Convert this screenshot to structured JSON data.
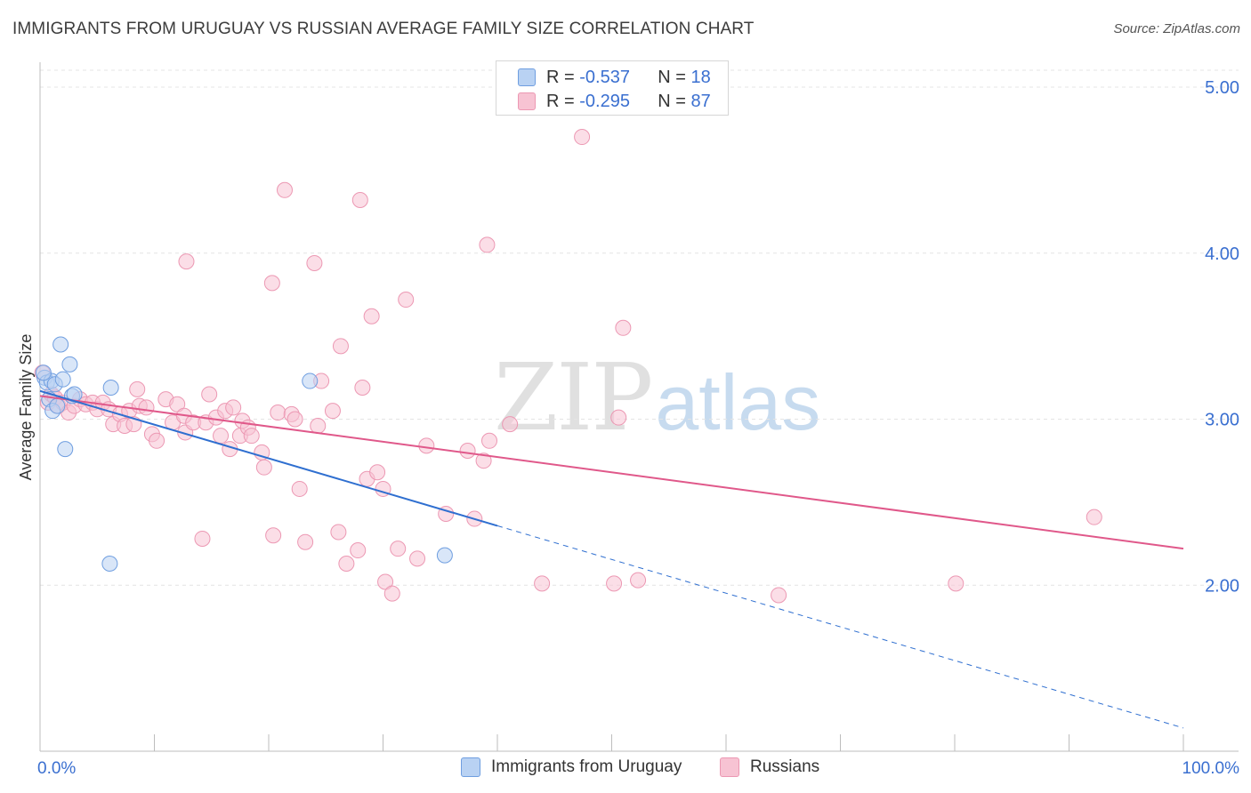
{
  "header": {
    "title": "IMMIGRANTS FROM URUGUAY VS RUSSIAN AVERAGE FAMILY SIZE CORRELATION CHART",
    "source": "Source: ZipAtlas.com"
  },
  "watermark": {
    "zip": "ZIP",
    "atlas": "atlas"
  },
  "colors": {
    "blue_fill": "#b9d2f3",
    "blue_stroke": "#6f9ee0",
    "blue_line": "#2f6fd0",
    "pink_fill": "#f7c3d3",
    "pink_stroke": "#ec98b3",
    "pink_line": "#e0588a",
    "axis_label": "#3a6fd0",
    "grid": "#e4e4e4"
  },
  "stats": [
    {
      "r_label": "R = ",
      "r_value": "-0.537",
      "n_label": "N = ",
      "n_value": "18"
    },
    {
      "r_label": "R = ",
      "r_value": "-0.295",
      "n_label": "N = ",
      "n_value": "87"
    }
  ],
  "legend": [
    {
      "label": "Immigrants from Uruguay"
    },
    {
      "label": "Russians"
    }
  ],
  "chart_data": {
    "type": "scatter",
    "title": "IMMIGRANTS FROM URUGUAY VS RUSSIAN AVERAGE FAMILY SIZE CORRELATION CHART",
    "xlabel": "",
    "ylabel": "Average Family Size",
    "xlim": [
      0,
      100
    ],
    "ylim": [
      1.0,
      5.15
    ],
    "x_tick_labels": [
      "0.0%",
      "100.0%"
    ],
    "y_ticks": [
      2.0,
      3.0,
      4.0,
      5.0
    ],
    "y_tick_labels": [
      "2.00",
      "3.00",
      "4.00",
      "5.00"
    ],
    "grid": true,
    "legend_position": "bottom",
    "series": [
      {
        "name": "Immigrants from Uruguay",
        "r": -0.537,
        "n": 18,
        "trend": {
          "x0": 0,
          "y0": 3.17,
          "x1": 100,
          "y1": 1.14,
          "solid_until_x": 40.0
        },
        "points": [
          [
            0.4,
            3.25
          ],
          [
            0.6,
            3.22
          ],
          [
            0.8,
            3.12
          ],
          [
            1.0,
            3.23
          ],
          [
            1.1,
            3.05
          ],
          [
            1.3,
            3.21
          ],
          [
            1.5,
            3.08
          ],
          [
            1.8,
            3.45
          ],
          [
            2.0,
            3.24
          ],
          [
            2.2,
            2.82
          ],
          [
            2.6,
            3.33
          ],
          [
            2.8,
            3.14
          ],
          [
            3.0,
            3.15
          ],
          [
            6.2,
            3.19
          ],
          [
            6.1,
            2.13
          ],
          [
            23.6,
            3.23
          ],
          [
            35.4,
            2.18
          ],
          [
            0.3,
            3.28
          ]
        ]
      },
      {
        "name": "Russians",
        "r": -0.295,
        "n": 87,
        "trend": {
          "x0": 0,
          "y0": 3.14,
          "x1": 100,
          "y1": 2.22,
          "solid_until_x": 100
        },
        "points": [
          [
            0.2,
            3.28
          ],
          [
            0.7,
            3.1
          ],
          [
            1.0,
            3.15
          ],
          [
            1.3,
            3.13
          ],
          [
            1.6,
            3.08
          ],
          [
            2.0,
            3.1
          ],
          [
            2.5,
            3.04
          ],
          [
            3.0,
            3.08
          ],
          [
            3.5,
            3.12
          ],
          [
            4.0,
            3.09
          ],
          [
            4.6,
            3.1
          ],
          [
            5.0,
            3.06
          ],
          [
            5.5,
            3.1
          ],
          [
            6.0,
            3.06
          ],
          [
            6.4,
            2.97
          ],
          [
            7.0,
            3.03
          ],
          [
            7.4,
            2.96
          ],
          [
            7.8,
            3.05
          ],
          [
            8.2,
            2.97
          ],
          [
            8.7,
            3.08
          ],
          [
            8.5,
            3.18
          ],
          [
            9.3,
            3.07
          ],
          [
            9.8,
            2.91
          ],
          [
            10.2,
            2.87
          ],
          [
            11.0,
            3.12
          ],
          [
            11.6,
            2.98
          ],
          [
            12.0,
            3.09
          ],
          [
            12.6,
            3.02
          ],
          [
            12.7,
            2.92
          ],
          [
            12.8,
            3.95
          ],
          [
            13.4,
            2.98
          ],
          [
            14.2,
            2.28
          ],
          [
            14.5,
            2.98
          ],
          [
            14.8,
            3.15
          ],
          [
            15.4,
            3.01
          ],
          [
            15.8,
            2.9
          ],
          [
            16.2,
            3.05
          ],
          [
            16.6,
            2.82
          ],
          [
            16.9,
            3.07
          ],
          [
            17.5,
            2.9
          ],
          [
            17.7,
            2.99
          ],
          [
            18.2,
            2.95
          ],
          [
            18.5,
            2.9
          ],
          [
            19.4,
            2.8
          ],
          [
            19.6,
            2.71
          ],
          [
            20.3,
            3.82
          ],
          [
            20.4,
            2.3
          ],
          [
            20.8,
            3.04
          ],
          [
            21.4,
            4.38
          ],
          [
            22.0,
            3.03
          ],
          [
            22.3,
            3.0
          ],
          [
            22.7,
            2.58
          ],
          [
            23.2,
            2.26
          ],
          [
            24.0,
            3.94
          ],
          [
            24.3,
            2.96
          ],
          [
            24.6,
            3.23
          ],
          [
            25.6,
            3.05
          ],
          [
            26.1,
            2.32
          ],
          [
            26.3,
            3.44
          ],
          [
            26.8,
            2.13
          ],
          [
            27.8,
            2.21
          ],
          [
            28.2,
            3.19
          ],
          [
            28.6,
            2.64
          ],
          [
            29.0,
            3.62
          ],
          [
            29.5,
            2.68
          ],
          [
            30.0,
            2.58
          ],
          [
            30.2,
            2.02
          ],
          [
            30.8,
            1.95
          ],
          [
            31.3,
            2.22
          ],
          [
            32.0,
            3.72
          ],
          [
            33.0,
            2.16
          ],
          [
            33.8,
            2.84
          ],
          [
            35.5,
            2.43
          ],
          [
            37.4,
            2.81
          ],
          [
            38.0,
            2.4
          ],
          [
            38.8,
            2.75
          ],
          [
            39.1,
            4.05
          ],
          [
            39.3,
            2.87
          ],
          [
            41.1,
            2.97
          ],
          [
            43.9,
            2.01
          ],
          [
            47.4,
            4.7
          ],
          [
            50.2,
            2.01
          ],
          [
            50.6,
            3.01
          ],
          [
            51.0,
            3.55
          ],
          [
            52.3,
            2.03
          ],
          [
            64.6,
            1.94
          ],
          [
            80.1,
            2.01
          ],
          [
            92.2,
            2.41
          ],
          [
            28.0,
            4.32
          ]
        ]
      }
    ]
  }
}
